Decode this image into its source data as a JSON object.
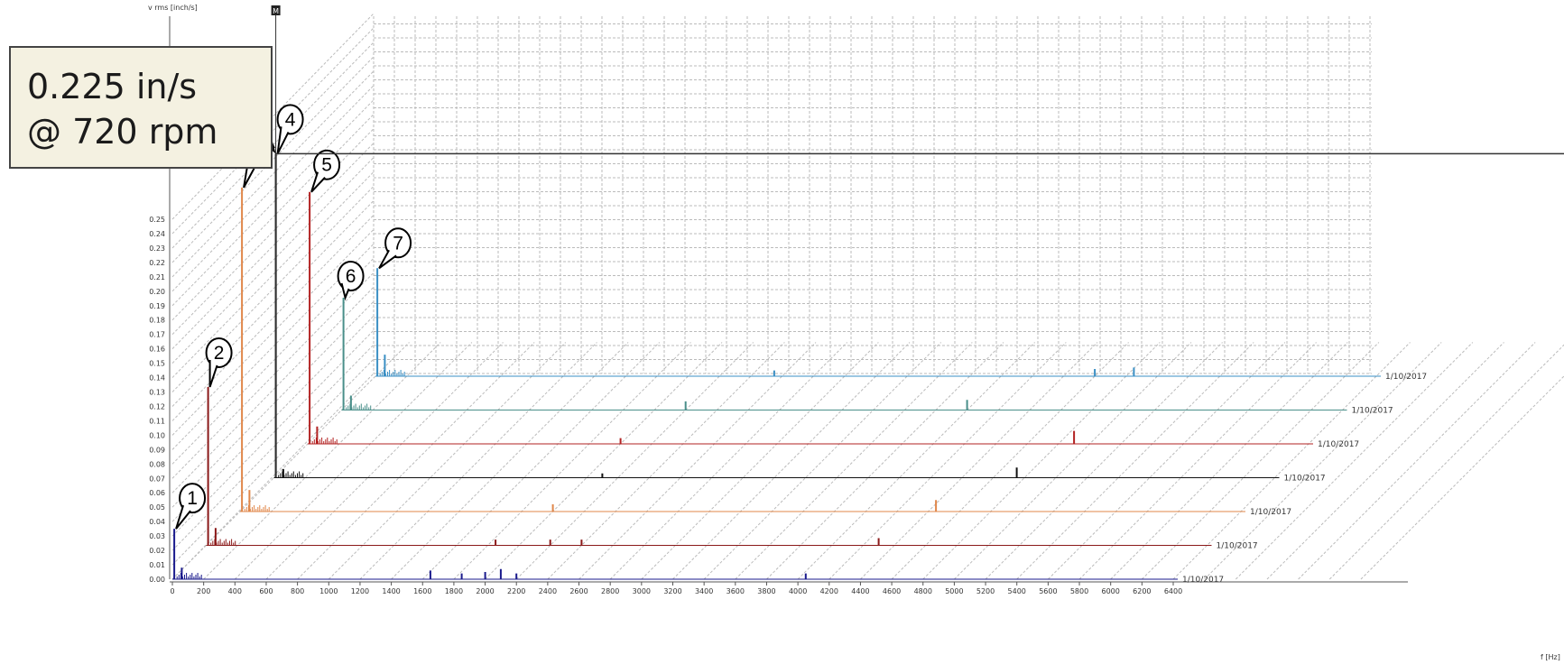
{
  "annotation": {
    "line1": "0.225 in/s",
    "line2": "@ 720 rpm"
  },
  "marker_label": "M",
  "y_axis_title": "v rms [inch/s]",
  "x_axis_title": "f [Hz]",
  "chart_data": {
    "type": "line",
    "title": "",
    "xlabel": "f [Hz]",
    "ylabel": "v rms [inch/s]",
    "xlim": [
      0,
      6400
    ],
    "ylim": [
      0,
      0.25
    ],
    "x_ticks": [
      0,
      200,
      400,
      600,
      800,
      1000,
      1200,
      1400,
      1600,
      1800,
      2000,
      2200,
      2400,
      2600,
      2800,
      3000,
      3200,
      3400,
      3600,
      3800,
      4000,
      4200,
      4400,
      4600,
      4800,
      5000,
      5200,
      5400,
      5600,
      5800,
      6000,
      6200,
      6400
    ],
    "y_ticks": [
      "0.00",
      "0.01",
      "0.02",
      "0.03",
      "0.04",
      "0.05",
      "0.06",
      "0.07",
      "0.08",
      "0.09",
      "0.10",
      "0.11",
      "0.12",
      "0.13",
      "0.14",
      "0.15",
      "0.16",
      "0.17",
      "0.18",
      "0.19",
      "0.20",
      "0.21",
      "0.22",
      "0.23",
      "0.24",
      "0.25"
    ],
    "grid": true,
    "waterfall": true,
    "series": [
      {
        "id": "1",
        "date": "1/10/2017",
        "color": "#1a1a8c",
        "peaks": [
          [
            12,
            0.035
          ],
          [
            60,
            0.008
          ],
          [
            1650,
            0.006
          ],
          [
            1850,
            0.004
          ],
          [
            2000,
            0.005
          ],
          [
            2100,
            0.007
          ],
          [
            2200,
            0.004
          ],
          [
            4050,
            0.004
          ]
        ]
      },
      {
        "id": "2",
        "date": "1/10/2017",
        "color": "#8b1a1a",
        "peaks": [
          [
            12,
            0.11
          ],
          [
            60,
            0.012
          ],
          [
            1850,
            0.004
          ],
          [
            2200,
            0.004
          ],
          [
            2400,
            0.004
          ],
          [
            4300,
            0.005
          ]
        ]
      },
      {
        "id": "3",
        "date": "1/10/2017",
        "color": "#e0874a",
        "peaks": [
          [
            12,
            0.225
          ],
          [
            60,
            0.015
          ],
          [
            2000,
            0.005
          ],
          [
            4450,
            0.008
          ]
        ]
      },
      {
        "id": "4",
        "date": "1/10/2017",
        "color": "#111111",
        "peaks": [
          [
            12,
            0.225
          ],
          [
            60,
            0.006
          ],
          [
            2100,
            0.003
          ],
          [
            4750,
            0.007
          ]
        ]
      },
      {
        "id": "5",
        "date": "1/10/2017",
        "color": "#b22222",
        "peaks": [
          [
            12,
            0.175
          ],
          [
            60,
            0.012
          ],
          [
            2000,
            0.004
          ],
          [
            4900,
            0.009
          ]
        ]
      },
      {
        "id": "6",
        "date": "1/10/2017",
        "color": "#4a8f8a",
        "peaks": [
          [
            12,
            0.078
          ],
          [
            60,
            0.01
          ],
          [
            2200,
            0.006
          ],
          [
            4000,
            0.007
          ]
        ]
      },
      {
        "id": "7",
        "date": "1/10/2017",
        "color": "#3a8fc4",
        "peaks": [
          [
            12,
            0.075
          ],
          [
            60,
            0.015
          ],
          [
            2550,
            0.004
          ],
          [
            4600,
            0.005
          ],
          [
            4850,
            0.006
          ]
        ]
      }
    ]
  }
}
